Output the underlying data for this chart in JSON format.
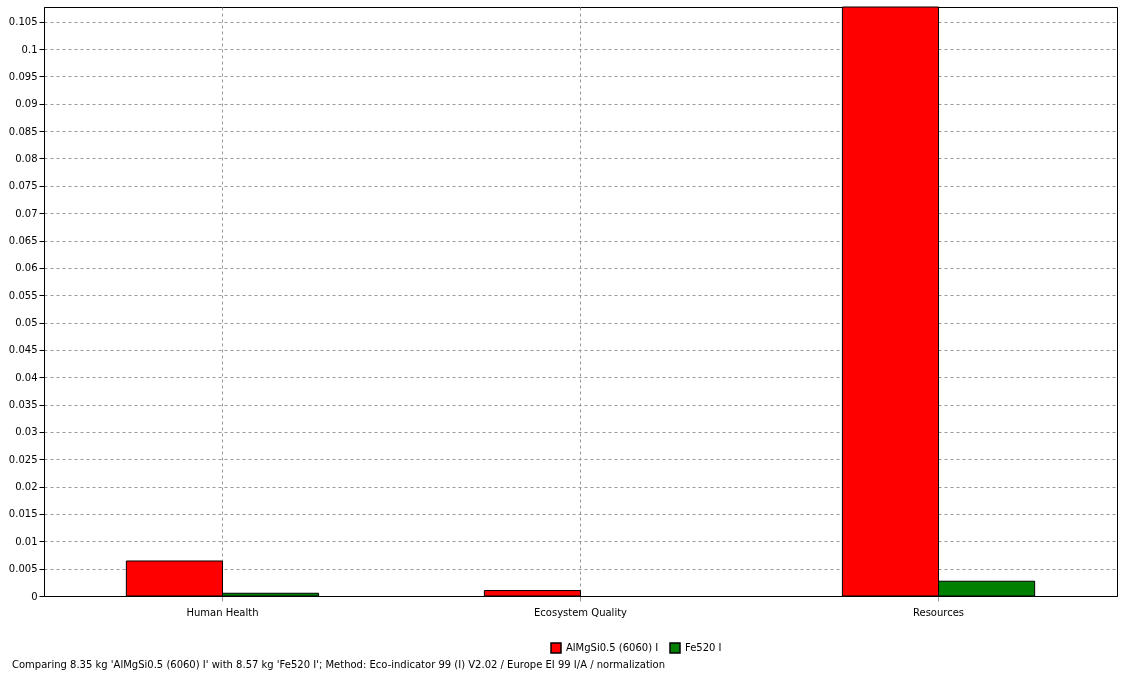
{
  "chart_data": {
    "type": "bar",
    "categories": [
      "Human Health",
      "Ecosystem Quality",
      "Resources"
    ],
    "series": [
      {
        "name": "AlMgSi0.5 (6060) I",
        "color": "#ff0000",
        "values": [
          0.0064,
          0.001,
          0.1077
        ]
      },
      {
        "name": "Fe520 I",
        "color": "#008000",
        "values": [
          0.0005,
          0,
          0.0027
        ]
      }
    ],
    "ylim": [
      0,
      0.1077
    ],
    "yticks": [
      0,
      0.005,
      0.01,
      0.015,
      0.02,
      0.025,
      0.03,
      0.035,
      0.04,
      0.045,
      0.05,
      0.055,
      0.06,
      0.065,
      0.07,
      0.075,
      0.08,
      0.085,
      0.09,
      0.095,
      0.1,
      0.105
    ],
    "grid": true,
    "legend": "bottom",
    "annotations": [
      "Comparing 8.35 kg 'AlMgSi0.5 (6060) I' with 8.57 kg 'Fe520 I';  Method: Eco-indicator 99 (I) V2.02 /  Europe EI 99 I/A / normalization"
    ]
  }
}
